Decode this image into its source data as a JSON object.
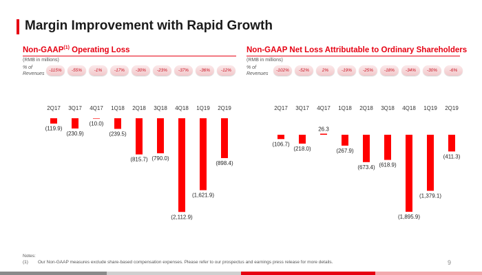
{
  "title": "Margin Improvement with Rapid Growth",
  "unit": "(RMB in millions)",
  "pct_label_line1": "% of",
  "pct_label_line2": "Revenues",
  "notes_heading": "Notes:",
  "note_number": "(1)",
  "note_text": "Our Non-GAAP measures exclude share-based compensation expenses. Please refer to our prospectus and earnings press release for more details.",
  "page_number": "9",
  "colors": {
    "accent": "#e60012",
    "bar": "#ff0000"
  },
  "chart_data": [
    {
      "type": "bar",
      "title_main": "Non-GAAP",
      "title_sup": "(1)",
      "title_rest": " Operating Loss",
      "categories": [
        "2Q17",
        "3Q17",
        "4Q17",
        "1Q18",
        "2Q18",
        "3Q18",
        "4Q18",
        "1Q19",
        "2Q19"
      ],
      "values": [
        -119.9,
        -230.9,
        -10.0,
        -239.5,
        -815.7,
        -790.0,
        -2112.9,
        -1621.9,
        -898.4
      ],
      "value_labels": [
        "(119.9)",
        "(230.9)",
        "(10.0)",
        "(239.5)",
        "(815.7)",
        "(790.0)",
        "(2,112.9)",
        "(1,621.9)",
        "(898.4)"
      ],
      "pct_of_revenues": [
        "-115%",
        "-55%",
        "-1%",
        "-17%",
        "-30%",
        "-23%",
        "-37%",
        "-36%",
        "-12%"
      ],
      "ylim": [
        -2200,
        0
      ]
    },
    {
      "type": "bar",
      "title_main": "Non-GAAP Net Loss Attributable to Ordinary Shareholders",
      "title_sup": "",
      "title_rest": "",
      "categories": [
        "2Q17",
        "3Q17",
        "4Q17",
        "1Q18",
        "2Q18",
        "3Q18",
        "4Q18",
        "1Q19",
        "2Q19"
      ],
      "values": [
        -106.7,
        -218.0,
        26.3,
        -267.9,
        -673.4,
        -618.9,
        -1895.9,
        -1379.1,
        -411.3
      ],
      "value_labels": [
        "(106.7)",
        "(218.0)",
        "26.3",
        "(267.9)",
        "(673.4)",
        "(618.9)",
        "(1,895.9)",
        "(1,379.1)",
        "(411.3)"
      ],
      "pct_of_revenues": [
        "-102%",
        "-52%",
        "2%",
        "-19%",
        "-25%",
        "-18%",
        "-34%",
        "-30%",
        "-6%"
      ],
      "ylim": [
        -2200,
        60
      ]
    }
  ]
}
